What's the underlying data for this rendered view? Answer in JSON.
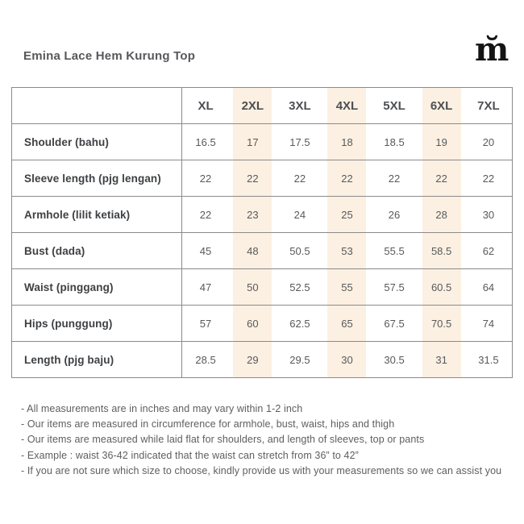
{
  "page": {
    "title": "Emina Lace Hem Kurung Top",
    "logo_glyph": "m̆"
  },
  "table": {
    "columns": [
      "XL",
      "2XL",
      "3XL",
      "4XL",
      "5XL",
      "6XL",
      "7XL"
    ],
    "highlighted_columns": [
      1,
      3,
      5
    ],
    "rows": [
      {
        "label": "Shoulder (bahu)",
        "values": [
          "16.5",
          "17",
          "17.5",
          "18",
          "18.5",
          "19",
          "20"
        ]
      },
      {
        "label": "Sleeve length (pjg lengan)",
        "values": [
          "22",
          "22",
          "22",
          "22",
          "22",
          "22",
          "22"
        ]
      },
      {
        "label": "Armhole (lilit ketiak)",
        "values": [
          "22",
          "23",
          "24",
          "25",
          "26",
          "28",
          "30"
        ]
      },
      {
        "label": "Bust (dada)",
        "values": [
          "45",
          "48",
          "50.5",
          "53",
          "55.5",
          "58.5",
          "62"
        ]
      },
      {
        "label": "Waist (pinggang)",
        "values": [
          "47",
          "50",
          "52.5",
          "55",
          "57.5",
          "60.5",
          "64"
        ]
      },
      {
        "label": "Hips (punggung)",
        "values": [
          "57",
          "60",
          "62.5",
          "65",
          "67.5",
          "70.5",
          "74"
        ]
      },
      {
        "label": "Length (pjg baju)",
        "values": [
          "28.5",
          "29",
          "29.5",
          "30",
          "30.5",
          "31",
          "31.5"
        ]
      }
    ]
  },
  "notes": [
    "- All measurements are in inches and may vary within 1-2 inch",
    "- Our items are measured in circumference for armhole, bust, waist, hips and thigh",
    "- Our items are measured while laid flat for shoulders, and length of sleeves, top or pants",
    "- Example : waist 36-42 indicated that the waist can stretch from 36” to 42”",
    "- If you are not sure which size to choose, kindly provide us with your measurements so we can assist you"
  ],
  "colors": {
    "highlight": "#fcf0e2",
    "border": "#8a8a8a",
    "title_text": "#57585b",
    "label_text": "#3e4043",
    "value_text": "#58595c",
    "note_text": "#5e5e5e"
  }
}
